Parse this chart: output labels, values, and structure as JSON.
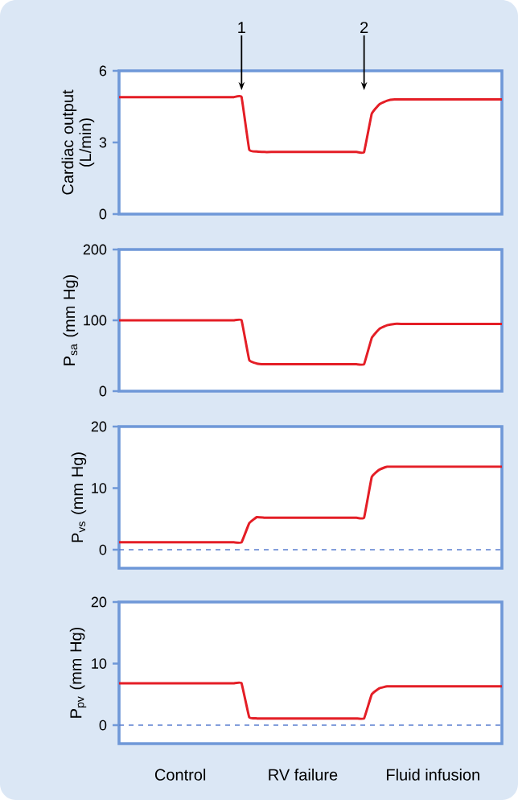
{
  "chart_data": [
    {
      "type": "line",
      "ylabel": "Cardiac output (L/min)",
      "categories": [
        null,
        null,
        null,
        null,
        null,
        null,
        null,
        null,
        null,
        null,
        null,
        null,
        null,
        null,
        null,
        null,
        null,
        null,
        null,
        null,
        null,
        null,
        null,
        null,
        null,
        null,
        null,
        null,
        null,
        null,
        null,
        null,
        null,
        null,
        null,
        null,
        null,
        null,
        null,
        null,
        null,
        null,
        null,
        null,
        null,
        null,
        null,
        null,
        null,
        null,
        null
      ],
      "ylim": [
        0,
        6
      ],
      "yticks": [
        0,
        3,
        6
      ],
      "tick_labels": "y",
      "series": [
        {
          "color": "#e41e26",
          "values": [
            4.9,
            4.9,
            4.9,
            4.9,
            4.9,
            4.9,
            4.9,
            4.9,
            4.9,
            4.9,
            4.9,
            4.9,
            4.9,
            4.9,
            4.9,
            4.9,
            4.9,
            2.7,
            2.62,
            2.6,
            2.6,
            2.6,
            2.6,
            2.6,
            2.6,
            2.6,
            2.6,
            2.6,
            2.6,
            2.6,
            2.6,
            2.6,
            2.6,
            4.2,
            4.6,
            4.75,
            4.8,
            4.8,
            4.8,
            4.8,
            4.8,
            4.8,
            4.8,
            4.8,
            4.8,
            4.8,
            4.8,
            4.8,
            4.8,
            4.8,
            4.8
          ]
        }
      ],
      "annotations": [
        "1",
        "2"
      ]
    },
    {
      "type": "line",
      "ylabel": "P$_{sa}$ (mm Hg)",
      "categories": [
        null,
        null,
        null,
        null,
        null,
        null,
        null,
        null,
        null,
        null,
        null,
        null,
        null,
        null,
        null,
        null,
        null,
        null,
        null,
        null,
        null,
        null,
        null,
        null,
        null,
        null,
        null,
        null,
        null,
        null,
        null,
        null,
        null,
        null,
        null,
        null,
        null,
        null,
        null,
        null,
        null,
        null,
        null,
        null,
        null,
        null,
        null,
        null,
        null,
        null,
        null
      ],
      "ylim": [
        0,
        200
      ],
      "yticks": [
        0,
        100,
        200
      ],
      "tick_labels": "y",
      "series": [
        {
          "color": "#e41e26",
          "values": [
            100,
            100,
            100,
            100,
            100,
            100,
            100,
            100,
            100,
            100,
            100,
            100,
            100,
            100,
            100,
            100,
            100,
            44,
            39,
            38,
            38,
            38,
            38,
            38,
            38,
            38,
            38,
            38,
            38,
            38,
            38,
            38,
            38,
            75,
            88,
            93,
            95,
            95,
            95,
            95,
            95,
            95,
            95,
            95,
            95,
            95,
            95,
            95,
            95,
            95,
            95
          ]
        }
      ]
    },
    {
      "type": "line",
      "ylabel": "P$_{vs}$ (mm Hg)",
      "categories": [
        null,
        null,
        null,
        null,
        null,
        null,
        null,
        null,
        null,
        null,
        null,
        null,
        null,
        null,
        null,
        null,
        null,
        null,
        null,
        null,
        null,
        null,
        null,
        null,
        null,
        null,
        null,
        null,
        null,
        null,
        null,
        null,
        null,
        null,
        null,
        null,
        null,
        null,
        null,
        null,
        null,
        null,
        null,
        null,
        null,
        null,
        null,
        null,
        null,
        null,
        null
      ],
      "ylim": [
        -3,
        20
      ],
      "yticks": [
        0,
        10,
        20
      ],
      "tick_labels": "y",
      "series": [
        {
          "color": "#e41e26",
          "values": [
            1.2,
            1.2,
            1.2,
            1.2,
            1.2,
            1.2,
            1.2,
            1.2,
            1.2,
            1.2,
            1.2,
            1.2,
            1.2,
            1.2,
            1.2,
            1.2,
            1.2,
            4.3,
            5.3,
            5.2,
            5.2,
            5.2,
            5.2,
            5.2,
            5.2,
            5.2,
            5.2,
            5.2,
            5.2,
            5.2,
            5.2,
            5.2,
            5.2,
            11.8,
            13,
            13.5,
            13.5,
            13.5,
            13.5,
            13.5,
            13.5,
            13.5,
            13.5,
            13.5,
            13.5,
            13.5,
            13.5,
            13.5,
            13.5,
            13.5,
            13.5
          ]
        }
      ],
      "ref_lines": [
        {
          "axis": "y",
          "value": 0,
          "color": "#5b7fcf",
          "line_style": "dashed"
        }
      ]
    },
    {
      "type": "line",
      "ylabel": "P$_{pv}$ (mm Hg)",
      "categories": [
        null,
        null,
        null,
        null,
        null,
        null,
        null,
        null,
        null,
        null,
        null,
        null,
        null,
        null,
        null,
        null,
        null,
        null,
        null,
        null,
        null,
        null,
        null,
        null,
        null,
        null,
        null,
        null,
        null,
        null,
        null,
        null,
        null,
        null,
        null,
        null,
        null,
        null,
        null,
        null,
        null,
        null,
        null,
        null,
        null,
        null,
        null,
        null,
        null,
        null,
        null
      ],
      "ylim": [
        -3,
        20
      ],
      "yticks": [
        0,
        10,
        20
      ],
      "tick_labels": "y",
      "series": [
        {
          "color": "#e41e26",
          "values": [
            6.8,
            6.8,
            6.8,
            6.8,
            6.8,
            6.8,
            6.8,
            6.8,
            6.8,
            6.8,
            6.8,
            6.8,
            6.8,
            6.8,
            6.8,
            6.8,
            6.8,
            1.3,
            1.1,
            1.1,
            1.1,
            1.1,
            1.1,
            1.1,
            1.1,
            1.1,
            1.1,
            1.1,
            1.1,
            1.1,
            1.1,
            1.1,
            1.1,
            5,
            6,
            6.3,
            6.3,
            6.3,
            6.3,
            6.3,
            6.3,
            6.3,
            6.3,
            6.3,
            6.3,
            6.3,
            6.3,
            6.3,
            6.3,
            6.3,
            6.3
          ]
        }
      ],
      "ref_lines": [
        {
          "axis": "y",
          "value": 0,
          "color": "#5b7fcf",
          "line_style": "dashed"
        }
      ],
      "annotations": [
        "Control",
        "RV failure",
        "Fluid infusion"
      ]
    }
  ]
}
